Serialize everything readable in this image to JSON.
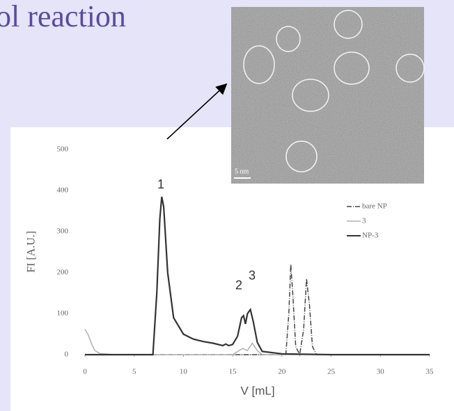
{
  "slide": {
    "title": "ol reaction"
  },
  "micrograph": {
    "scale_bar": "5 nm"
  },
  "chart_data": {
    "type": "line",
    "xlabel": "V [mL]",
    "ylabel": "FI [A.U.]",
    "annotations": [
      "1",
      "2",
      "3"
    ],
    "xlim": [
      0,
      35
    ],
    "xticks": [
      0,
      5,
      10,
      15,
      20,
      25,
      30,
      35
    ],
    "ylim": [
      0,
      500
    ],
    "yticks": [
      0,
      100,
      200,
      300,
      400,
      500
    ],
    "grid": false,
    "legend": "upper right",
    "series": [
      {
        "name": "bare NP",
        "color": "#444444",
        "dash": "7 2 1 2",
        "x": [
          0,
          20.4,
          20.7,
          20.9,
          21.1,
          21.4,
          21.8,
          22.2,
          22.5,
          22.8,
          23.1,
          23.5,
          35
        ],
        "values": [
          0,
          0,
          100,
          220,
          150,
          20,
          0,
          60,
          185,
          120,
          20,
          0,
          0
        ]
      },
      {
        "name": "3",
        "color": "#b0b0b0",
        "dash": "",
        "x": [
          0,
          0.3,
          0.7,
          1,
          1.5,
          3,
          7,
          15,
          16,
          16.5,
          17,
          17.5,
          18,
          25,
          35
        ],
        "values": [
          62,
          50,
          25,
          10,
          3,
          0,
          0,
          0,
          15,
          10,
          28,
          10,
          0,
          0,
          0
        ]
      },
      {
        "name": "NP-3",
        "color": "#333333",
        "dash": "",
        "x": [
          0,
          5,
          6.9,
          7.3,
          7.6,
          7.8,
          8.0,
          8.4,
          9,
          10,
          11,
          12,
          13,
          14,
          14.3,
          14.6,
          15,
          15.5,
          15.9,
          16.1,
          16.3,
          16.5,
          16.8,
          17.1,
          17.5,
          18,
          20,
          25,
          30,
          35
        ],
        "values": [
          0,
          0,
          0,
          150,
          330,
          385,
          360,
          200,
          90,
          50,
          38,
          32,
          28,
          22,
          26,
          22,
          25,
          45,
          90,
          95,
          75,
          100,
          110,
          80,
          30,
          8,
          2,
          0,
          0,
          0
        ]
      }
    ]
  }
}
